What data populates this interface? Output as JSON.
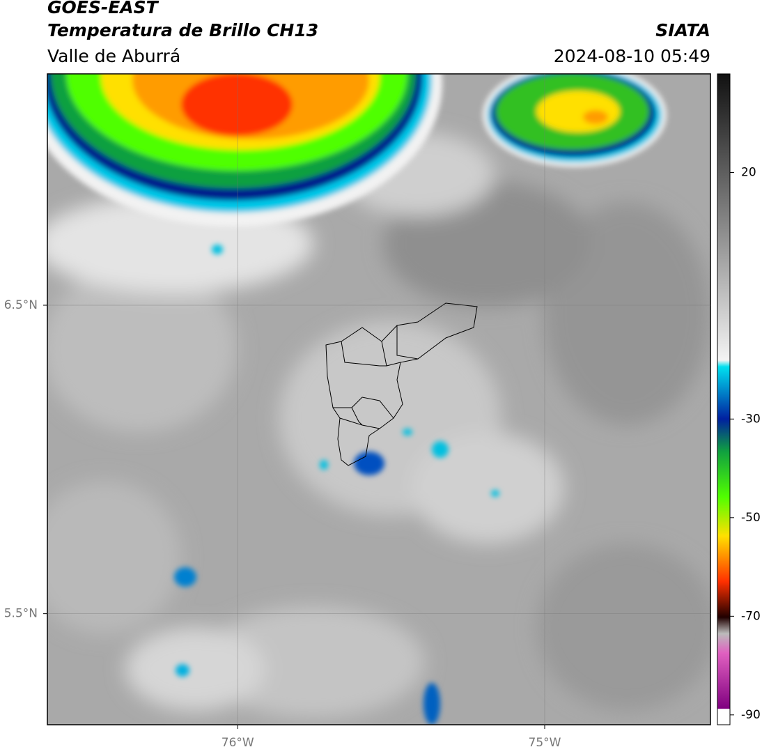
{
  "header": {
    "title": "GOES-EAST",
    "subtitle": "Temperatura de Brillo CH13",
    "region": "Valle de Aburrá",
    "source": "SIATA",
    "timestamp": "2024-08-10 05:49"
  },
  "map": {
    "xlim": [
      -76.62,
      -74.46
    ],
    "ylim": [
      5.14,
      7.25
    ],
    "xticks": [
      {
        "value": -76,
        "label": "76°W"
      },
      {
        "value": -75,
        "label": "75°W"
      }
    ],
    "yticks": [
      {
        "value": 6.5,
        "label": "6.5°N"
      },
      {
        "value": 5.5,
        "label": "5.5°N"
      }
    ]
  },
  "colorbar": {
    "lim": [
      -92,
      40
    ],
    "ticks": [
      20,
      -30,
      -50,
      -70,
      -90
    ]
  }
}
